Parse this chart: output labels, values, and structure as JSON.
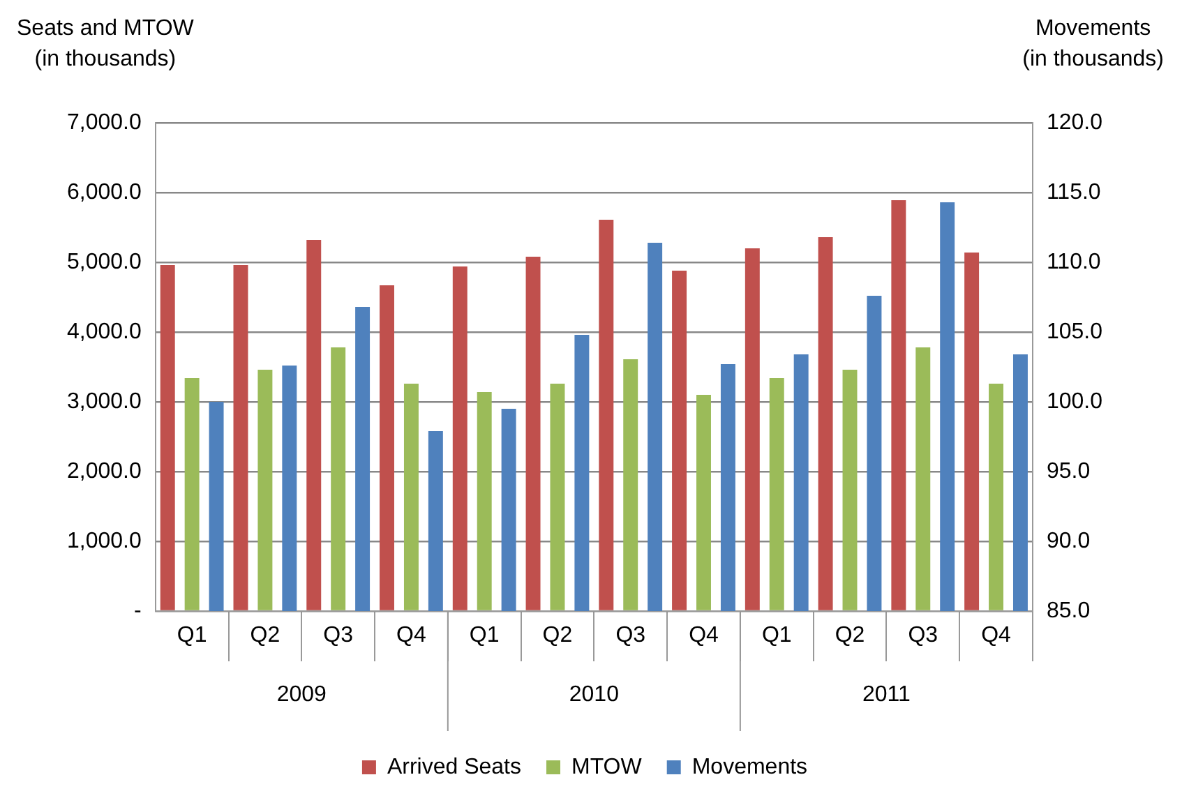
{
  "chart_data": {
    "type": "bar",
    "ylabel": "Seats and MTOW\n(in thousands)",
    "y2label": "Movements\n(in thousands)",
    "categories": [
      "Q1",
      "Q2",
      "Q3",
      "Q4",
      "Q1",
      "Q2",
      "Q3",
      "Q4",
      "Q1",
      "Q2",
      "Q3",
      "Q4"
    ],
    "annotations": [
      "2009",
      "2010",
      "2011"
    ],
    "series": [
      {
        "name": "Arrived Seats",
        "color": "#c0504d",
        "values": [
          4960,
          4960,
          5320,
          4670,
          4940,
          5080,
          5610,
          4880,
          5200,
          5360,
          5890,
          5140
        ]
      },
      {
        "name": "MTOW",
        "color": "#9bbb59",
        "values": [
          3340,
          3460,
          3780,
          3260,
          3140,
          3260,
          3610,
          3100,
          3340,
          3460,
          3780,
          3260
        ]
      },
      {
        "name": "Movements",
        "color": "#4f81bd",
        "axis": "y2",
        "values": [
          100.0,
          102.6,
          106.8,
          97.9,
          99.5,
          104.8,
          111.4,
          102.7,
          103.4,
          107.6,
          114.3,
          103.4
        ]
      }
    ],
    "ylim": [
      0,
      7000
    ],
    "yticks": [
      {
        "value": 0,
        "label": "-"
      },
      {
        "value": 1000,
        "label": "1,000.0"
      },
      {
        "value": 2000,
        "label": "2,000.0"
      },
      {
        "value": 3000,
        "label": "3,000.0"
      },
      {
        "value": 4000,
        "label": "4,000.0"
      },
      {
        "value": 5000,
        "label": "5,000.0"
      },
      {
        "value": 6000,
        "label": "6,000.0"
      },
      {
        "value": 7000,
        "label": "7,000.0"
      }
    ],
    "y2lim": [
      85,
      120
    ],
    "y2ticks": [
      {
        "value": 85,
        "label": "85.0"
      },
      {
        "value": 90,
        "label": "90.0"
      },
      {
        "value": 95,
        "label": "95.0"
      },
      {
        "value": 100,
        "label": "100.0"
      },
      {
        "value": 105,
        "label": "105.0"
      },
      {
        "value": 110,
        "label": "110.0"
      },
      {
        "value": 115,
        "label": "115.0"
      },
      {
        "value": 120,
        "label": "120.0"
      }
    ],
    "grid": "y",
    "legend": "bottom"
  }
}
